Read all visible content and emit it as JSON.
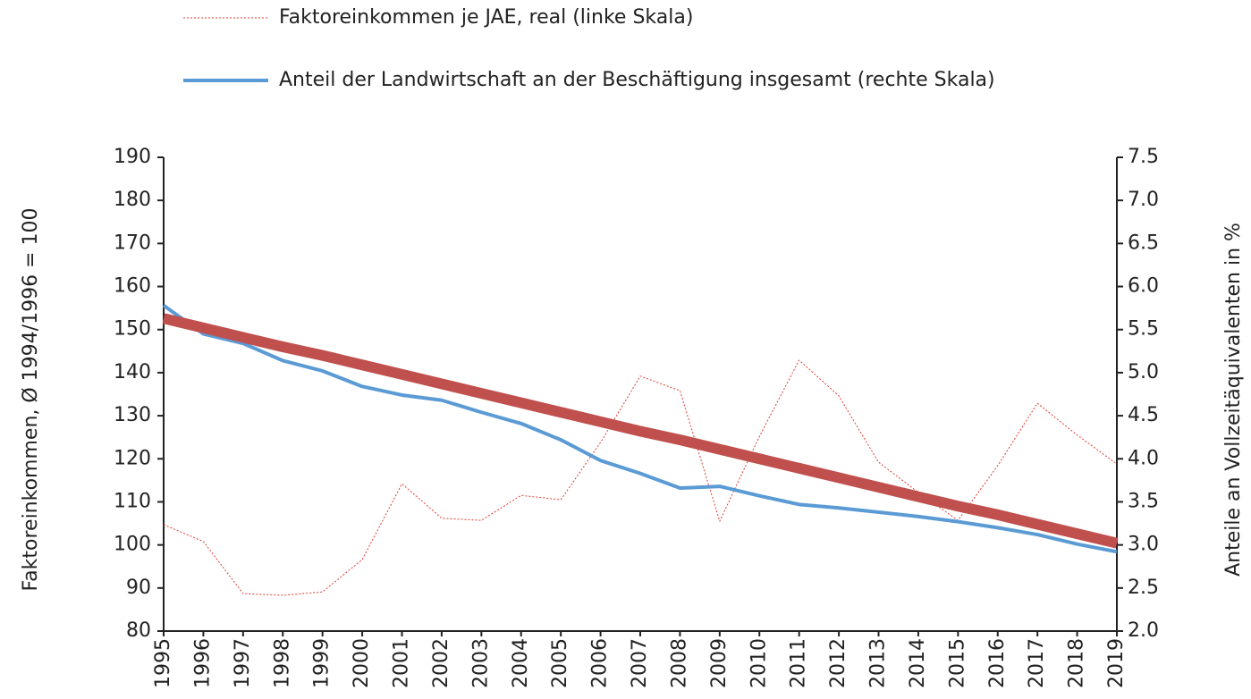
{
  "chart_data": {
    "type": "line",
    "categories": [
      "1995",
      "1996",
      "1997",
      "1998",
      "1999",
      "2000",
      "2001",
      "2002",
      "2003",
      "2004",
      "2005",
      "2006",
      "2007",
      "2008",
      "2009",
      "2010",
      "2011",
      "2012",
      "2013",
      "2014",
      "2015",
      "2016",
      "2017",
      "2018",
      "2019"
    ],
    "ylabel": "Faktoreinkommen, Ø 1994/1996 = 100",
    "y2label": "Anteile an Vollzeitäquivalenten in %",
    "ylim": [
      80,
      190
    ],
    "yticks": [
      80,
      90,
      100,
      110,
      120,
      130,
      140,
      150,
      160,
      170,
      180,
      190
    ],
    "y2lim": [
      2,
      7.5
    ],
    "y2ticks": [
      {
        "value": 2,
        "label": "2.0"
      },
      2.5,
      {
        "value": 3,
        "label": "3.0"
      },
      3.5,
      {
        "value": 4,
        "label": "4.0"
      },
      4.5,
      {
        "value": 5,
        "label": "5.0"
      },
      5.5,
      {
        "value": 6,
        "label": "6.0"
      },
      6.5,
      {
        "value": 7,
        "label": "7.0"
      },
      7.5
    ],
    "series": [
      {
        "name": "Faktoreinkommen je JAE, real (linke Skala)",
        "color": "#e03c31",
        "values": [
          104.7,
          100.8,
          88.7,
          88.3,
          89.1,
          96.6,
          114.2,
          106.2,
          105.7,
          111.5,
          110.5,
          123.8,
          139.2,
          135.8,
          105.5,
          125.2,
          142.9,
          134.6,
          119.2,
          112.2,
          105.7,
          118.4,
          132.9,
          125.5,
          118.8
        ]
      },
      {
        "name": "Anteil der Landwirtschaft an der Beschäftigung insgesamt (rechte Skala)",
        "color": "#5b9bd5",
        "axis": "y2",
        "values": [
          5.78,
          5.45,
          5.34,
          5.14,
          5.02,
          4.84,
          4.74,
          4.68,
          4.54,
          4.41,
          4.22,
          3.98,
          3.83,
          3.66,
          3.68,
          3.57,
          3.47,
          3.43,
          3.38,
          3.33,
          3.27,
          3.2,
          3.12,
          3.01,
          2.92
        ]
      },
      {
        "color": "#c0504d",
        "axis": "y2",
        "values": [
          5.63,
          5.52,
          5.41,
          5.3,
          5.2,
          5.09,
          4.98,
          4.87,
          4.76,
          4.65,
          4.54,
          4.43,
          4.32,
          4.22,
          4.11,
          4,
          3.89,
          3.78,
          3.67,
          3.56,
          3.45,
          3.35,
          3.24,
          3.13,
          3.02
        ]
      }
    ]
  }
}
